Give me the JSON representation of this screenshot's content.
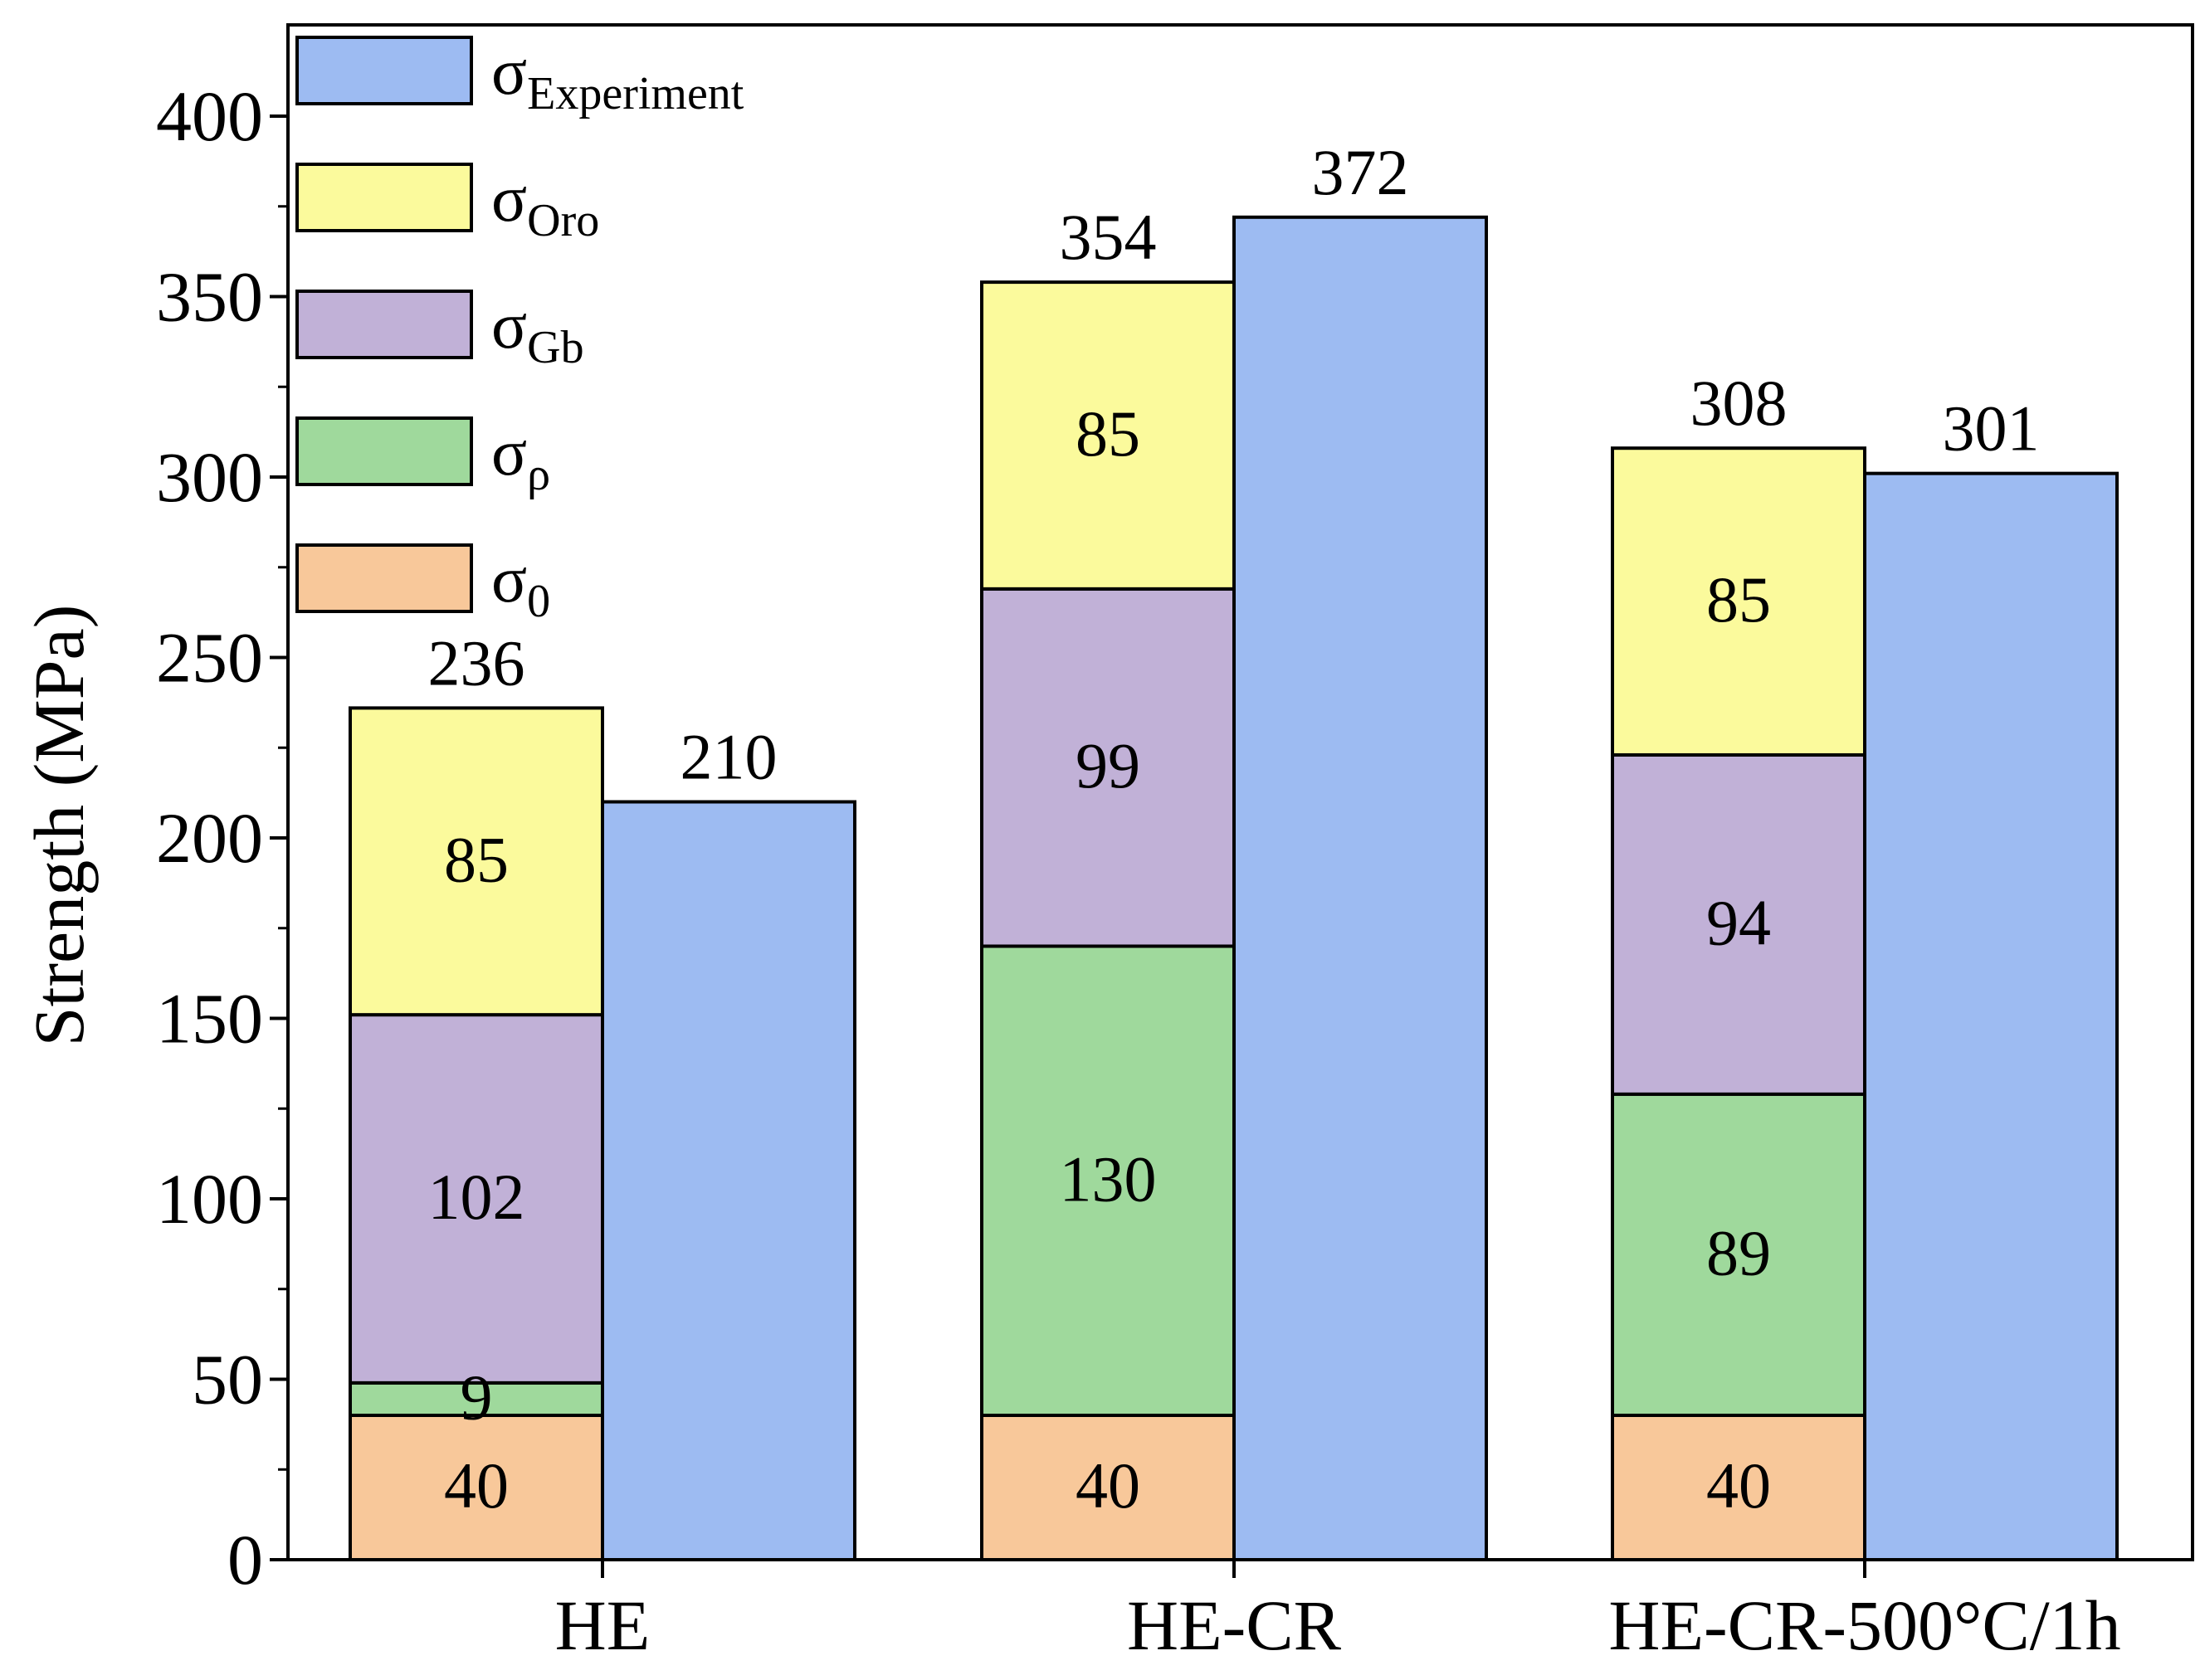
{
  "chart_data": {
    "type": "bar",
    "ylabel": "Strength (MPa)",
    "ylim": [
      0,
      420
    ],
    "yticks": [
      0,
      50,
      100,
      150,
      200,
      250,
      300,
      350,
      400
    ],
    "grid": false,
    "legend_position": "top-left",
    "categories": [
      "HE",
      "HE-CR",
      "HE-CR-500°C/1h"
    ],
    "stacked_series": [
      {
        "name": "σ0",
        "base": "σ",
        "sub": "0",
        "color": "#f8c89a",
        "values": [
          40,
          40,
          40
        ]
      },
      {
        "name": "σρ",
        "base": "σ",
        "sub": "ρ",
        "color": "#9fd99c",
        "values": [
          9,
          130,
          89
        ]
      },
      {
        "name": "σGb",
        "base": "σ",
        "sub": "Gb",
        "color": "#c1b1d7",
        "values": [
          102,
          99,
          94
        ]
      },
      {
        "name": "σOro",
        "base": "σ",
        "sub": "Oro",
        "color": "#fbfa9c",
        "values": [
          85,
          85,
          85
        ]
      }
    ],
    "stack_totals": [
      236,
      354,
      308
    ],
    "experiment_series": {
      "name": "σExperiment",
      "base": "σ",
      "sub": "Experiment",
      "color": "#9dbbf2",
      "values": [
        210,
        372,
        301
      ]
    },
    "legend_order": [
      "σExperiment",
      "σOro",
      "σGb",
      "σρ",
      "σ0"
    ]
  }
}
